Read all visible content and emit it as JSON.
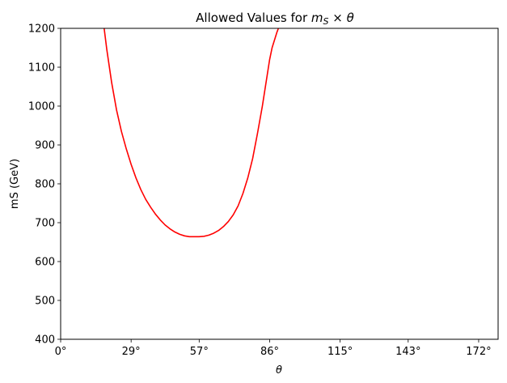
{
  "chart_data": {
    "type": "line",
    "title": "Allowed Values for m_S × θ",
    "title_parts": {
      "prefix": "Allowed Values for ",
      "m": "m",
      "sub": "S",
      "times": " × ",
      "theta": "θ"
    },
    "xlabel": "θ",
    "ylabel": "mS (GeV)",
    "xlim": [
      0,
      180
    ],
    "ylim": [
      400,
      1200
    ],
    "x_ticks": [
      0,
      29,
      57,
      86,
      115,
      143,
      172
    ],
    "x_tick_labels": [
      "0°",
      "29°",
      "57°",
      "86°",
      "115°",
      "143°",
      "172°"
    ],
    "y_ticks": [
      400,
      500,
      600,
      700,
      800,
      900,
      1000,
      1100,
      1200
    ],
    "y_tick_labels": [
      "400",
      "500",
      "600",
      "700",
      "800",
      "900",
      "1000",
      "1100",
      "1200"
    ],
    "grid": false,
    "series": [
      {
        "color": "#ff0000",
        "x": [
          17.9,
          19,
          21,
          23,
          25,
          27,
          29,
          31,
          33,
          35,
          37,
          39,
          41,
          43,
          45,
          47,
          49,
          51,
          53,
          55,
          57,
          59,
          61,
          63,
          65,
          67,
          69,
          71,
          73,
          75,
          77,
          79,
          81,
          83,
          84,
          85,
          86,
          87,
          88,
          89,
          89.6
        ],
        "y": [
          1200,
          1145,
          1060,
          990,
          935,
          890,
          850,
          815,
          785,
          760,
          740,
          722,
          707,
          694,
          684,
          676,
          670,
          666,
          664,
          664,
          664,
          665,
          668,
          673,
          680,
          690,
          703,
          720,
          743,
          775,
          815,
          865,
          930,
          1000,
          1040,
          1080,
          1120,
          1150,
          1170,
          1190,
          1200
        ]
      }
    ]
  }
}
